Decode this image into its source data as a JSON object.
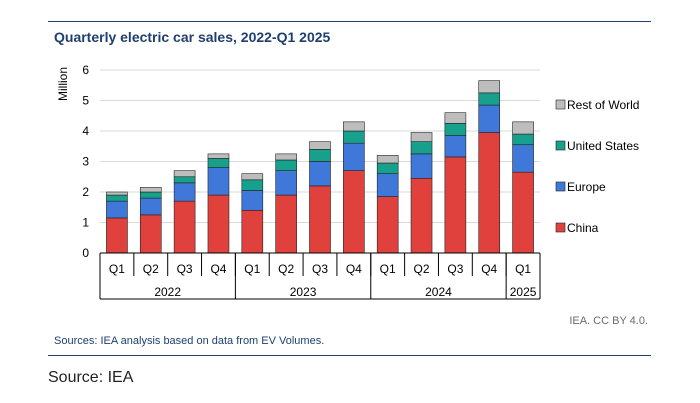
{
  "title": "Quarterly electric car sales, 2022-Q1 2025",
  "credit": "IEA. CC BY 4.0.",
  "sources": "Sources: IEA analysis based on data from EV Volumes.",
  "footer_source": "Source: IEA",
  "colors": {
    "China": "#e0413c",
    "Europe": "#3f78d8",
    "United States": "#17a08c",
    "Rest of World": "#bdbdbd",
    "accent": "#1f3f6e"
  },
  "chart_data": {
    "type": "bar",
    "stacked": true,
    "title": "Quarterly electric car sales, 2022-Q1 2025",
    "ylabel": "Million",
    "xlabel": "",
    "ylim": [
      0,
      6
    ],
    "yticks": [
      0,
      1,
      2,
      3,
      4,
      5,
      6
    ],
    "grid": true,
    "legend_position": "right",
    "categories": [
      "Q1",
      "Q2",
      "Q3",
      "Q4",
      "Q1",
      "Q2",
      "Q3",
      "Q4",
      "Q1",
      "Q2",
      "Q3",
      "Q4",
      "Q1"
    ],
    "groups": [
      {
        "label": "2022",
        "count": 4
      },
      {
        "label": "2023",
        "count": 4
      },
      {
        "label": "2024",
        "count": 4
      },
      {
        "label": "2025",
        "count": 1
      }
    ],
    "series": [
      {
        "name": "China",
        "values": [
          1.15,
          1.25,
          1.7,
          1.9,
          1.4,
          1.9,
          2.2,
          2.7,
          1.85,
          2.45,
          3.15,
          3.95,
          2.65
        ]
      },
      {
        "name": "Europe",
        "values": [
          0.55,
          0.55,
          0.6,
          0.9,
          0.65,
          0.8,
          0.8,
          0.9,
          0.75,
          0.8,
          0.7,
          0.9,
          0.9
        ]
      },
      {
        "name": "United States",
        "values": [
          0.2,
          0.2,
          0.2,
          0.3,
          0.35,
          0.35,
          0.4,
          0.4,
          0.35,
          0.4,
          0.4,
          0.4,
          0.35
        ]
      },
      {
        "name": "Rest of World",
        "values": [
          0.1,
          0.15,
          0.2,
          0.15,
          0.2,
          0.2,
          0.25,
          0.3,
          0.25,
          0.3,
          0.35,
          0.4,
          0.4
        ]
      }
    ],
    "legend": [
      "Rest of World",
      "United States",
      "Europe",
      "China"
    ]
  }
}
